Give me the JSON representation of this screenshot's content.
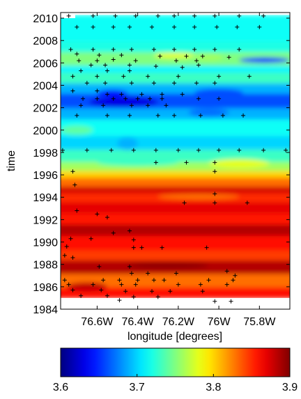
{
  "chart_data": {
    "type": "heatmap",
    "title": "",
    "xlabel": "longitude [degrees]",
    "ylabel": "time",
    "x_range": [
      -76.78,
      -75.65
    ],
    "y_range": [
      1984,
      2010.5
    ],
    "x_ticks": [
      -76.6,
      -76.4,
      -76.2,
      -76.0,
      -75.8
    ],
    "x_tick_labels": [
      "76.6W",
      "76.4W",
      "76.2W",
      "76W",
      "75.8W"
    ],
    "y_ticks": [
      1984,
      1986,
      1988,
      1990,
      1992,
      1994,
      1996,
      1998,
      2000,
      2002,
      2004,
      2006,
      2008,
      2010
    ],
    "y_tick_labels": [
      "1984",
      "1986",
      "1988",
      "1990",
      "1992",
      "1994",
      "1996",
      "1998",
      "2000",
      "2002",
      "2004",
      "2006",
      "2008",
      "2010"
    ],
    "colorbar": {
      "min": 3.6,
      "max": 3.9,
      "colormap": "jet",
      "ticks": [
        3.6,
        3.7,
        3.8,
        3.9
      ],
      "tick_labels": [
        "3.6",
        "3.7",
        "3.8",
        "3.9"
      ]
    },
    "bands": [
      {
        "y0": 1985.0,
        "y1": 1986.0,
        "value": 3.86
      },
      {
        "y0": 1986.0,
        "y1": 1987.2,
        "value": 3.83
      },
      {
        "y0": 1987.2,
        "y1": 1988.4,
        "value": 3.885
      },
      {
        "y0": 1988.4,
        "y1": 1989.3,
        "value": 3.845
      },
      {
        "y0": 1989.3,
        "y1": 1990.6,
        "value": 3.86
      },
      {
        "y0": 1990.6,
        "y1": 1991.6,
        "value": 3.885
      },
      {
        "y0": 1991.6,
        "y1": 1992.6,
        "value": 3.855
      },
      {
        "y0": 1992.6,
        "y1": 1993.6,
        "value": 3.87
      },
      {
        "y0": 1993.6,
        "y1": 1994.4,
        "value": 3.85
      },
      {
        "y0": 1994.4,
        "y1": 1995.0,
        "value": 3.875
      },
      {
        "y0": 1995.0,
        "y1": 1995.8,
        "value": 3.83
      },
      {
        "y0": 1995.8,
        "y1": 1996.4,
        "value": 3.8
      },
      {
        "y0": 1996.4,
        "y1": 1997.2,
        "value": 3.76
      },
      {
        "y0": 1997.2,
        "y1": 1998.3,
        "value": 3.73
      },
      {
        "y0": 1998.3,
        "y1": 1999.5,
        "value": 3.7
      },
      {
        "y0": 1999.5,
        "y1": 2001.0,
        "value": 3.715
      },
      {
        "y0": 2001.0,
        "y1": 2002.0,
        "value": 3.69
      },
      {
        "y0": 2002.0,
        "y1": 2003.3,
        "value": 3.66
      },
      {
        "y0": 2003.3,
        "y1": 2004.2,
        "value": 3.69
      },
      {
        "y0": 2004.2,
        "y1": 2005.2,
        "value": 3.73
      },
      {
        "y0": 2005.2,
        "y1": 2005.8,
        "value": 3.71
      },
      {
        "y0": 2005.8,
        "y1": 2007.0,
        "value": 3.75
      },
      {
        "y0": 2007.0,
        "y1": 2008.0,
        "value": 3.72
      },
      {
        "y0": 2008.0,
        "y1": 2010.3,
        "value": 3.715
      }
    ],
    "blobs": [
      {
        "x0": -76.64,
        "x1": -76.3,
        "y0": 2002.0,
        "y1": 2003.0,
        "value": 3.63
      },
      {
        "x0": -76.6,
        "x1": -76.45,
        "y0": 2003.0,
        "y1": 2003.6,
        "value": 3.64
      },
      {
        "x0": -76.12,
        "x1": -75.88,
        "y0": 2003.0,
        "y1": 2003.7,
        "value": 3.66
      },
      {
        "x0": -76.15,
        "x1": -75.95,
        "y0": 2001.2,
        "y1": 2001.9,
        "value": 3.67
      },
      {
        "x0": -75.9,
        "x1": -75.65,
        "y0": 2006.0,
        "y1": 2006.5,
        "value": 3.64
      },
      {
        "x0": -76.5,
        "x1": -76.4,
        "y0": 1998.2,
        "y1": 1999.4,
        "value": 3.69
      },
      {
        "x0": -76.12,
        "x1": -75.98,
        "y0": 2006.2,
        "y1": 2006.8,
        "value": 3.76
      },
      {
        "x0": -76.32,
        "x1": -76.12,
        "y0": 2006.4,
        "y1": 2006.9,
        "value": 3.78
      },
      {
        "x0": -76.78,
        "x1": -76.62,
        "y0": 1999.6,
        "y1": 2000.4,
        "value": 3.74
      },
      {
        "x0": -76.05,
        "x1": -75.75,
        "y0": 1996.6,
        "y1": 1997.4,
        "value": 3.78
      },
      {
        "x0": -76.6,
        "x1": -76.2,
        "y0": 1996.8,
        "y1": 1997.4,
        "value": 3.73
      },
      {
        "x0": -76.75,
        "x1": -76.55,
        "y0": 1985.6,
        "y1": 1986.4,
        "value": 3.88
      },
      {
        "x0": -76.45,
        "x1": -76.05,
        "y0": 1987.6,
        "y1": 1988.2,
        "value": 3.895
      },
      {
        "x0": -76.3,
        "x1": -75.9,
        "y0": 1993.8,
        "y1": 1994.3,
        "value": 3.83
      }
    ],
    "points": [
      [
        -76.74,
        2010.2
      ],
      [
        -76.62,
        2010.2
      ],
      [
        -76.51,
        2010.2
      ],
      [
        -76.41,
        2010.2
      ],
      [
        -76.3,
        2010.2
      ],
      [
        -76.22,
        2010.2
      ],
      [
        -76.12,
        2010.2
      ],
      [
        -76.02,
        2010.2
      ],
      [
        -75.9,
        2010.2
      ],
      [
        -75.78,
        2010.2
      ],
      [
        -76.7,
        2009.2
      ],
      [
        -76.62,
        2009.2
      ],
      [
        -76.52,
        2009.2
      ],
      [
        -76.44,
        2009.2
      ],
      [
        -76.33,
        2009.2
      ],
      [
        -76.22,
        2009.2
      ],
      [
        -76.12,
        2009.2
      ],
      [
        -76.01,
        2009.2
      ],
      [
        -75.91,
        2009.2
      ],
      [
        -75.8,
        2009.2
      ],
      [
        -76.73,
        2007.2
      ],
      [
        -76.62,
        2007.2
      ],
      [
        -76.52,
        2007.2
      ],
      [
        -76.43,
        2007.2
      ],
      [
        -76.32,
        2007.2
      ],
      [
        -76.22,
        2007.2
      ],
      [
        -76.12,
        2007.2
      ],
      [
        -76.02,
        2007.2
      ],
      [
        -75.9,
        2007.2
      ],
      [
        -76.7,
        2006.8
      ],
      [
        -76.59,
        2006.7
      ],
      [
        -76.48,
        2006.7
      ],
      [
        -76.29,
        2006.6
      ],
      [
        -76.16,
        2006.6
      ],
      [
        -76.08,
        2006.6
      ],
      [
        -75.95,
        2006.5
      ],
      [
        -76.69,
        2006.2
      ],
      [
        -76.6,
        2006.2
      ],
      [
        -76.52,
        2006.3
      ],
      [
        -76.41,
        2006.2
      ],
      [
        -76.21,
        2006.2
      ],
      [
        -76.11,
        2006.2
      ],
      [
        -76.63,
        2005.8
      ],
      [
        -76.56,
        2005.8
      ],
      [
        -76.44,
        2005.8
      ],
      [
        -76.31,
        2005.7
      ],
      [
        -76.18,
        2005.6
      ],
      [
        -76.1,
        2005.8
      ],
      [
        -76.68,
        2005.3
      ],
      [
        -76.55,
        2005.3
      ],
      [
        -76.44,
        2005.3
      ],
      [
        -76.72,
        2004.8
      ],
      [
        -76.6,
        2004.8
      ],
      [
        -76.47,
        2004.8
      ],
      [
        -76.35,
        2004.8
      ],
      [
        -76.2,
        2004.8
      ],
      [
        -76.0,
        2004.8
      ],
      [
        -75.85,
        2004.8
      ],
      [
        -76.65,
        2004.2
      ],
      [
        -76.56,
        2004.2
      ],
      [
        -76.43,
        2004.2
      ],
      [
        -76.32,
        2004.2
      ],
      [
        -76.22,
        2004.2
      ],
      [
        -76.11,
        2004.2
      ],
      [
        -76.02,
        2004.2
      ],
      [
        -76.72,
        2003.5
      ],
      [
        -76.6,
        2003.5
      ],
      [
        -76.55,
        2003.2
      ],
      [
        -76.48,
        2003.2
      ],
      [
        -76.38,
        2003.2
      ],
      [
        -76.28,
        2003.2
      ],
      [
        -76.18,
        2003.2
      ],
      [
        -76.67,
        2002.8
      ],
      [
        -76.6,
        2002.8
      ],
      [
        -76.52,
        2002.8
      ],
      [
        -76.46,
        2002.8
      ],
      [
        -76.4,
        2002.8
      ],
      [
        -76.34,
        2002.8
      ],
      [
        -76.28,
        2002.8
      ],
      [
        -76.1,
        2002.8
      ],
      [
        -76.0,
        2002.8
      ],
      [
        -76.68,
        2002.2
      ],
      [
        -76.57,
        2002.2
      ],
      [
        -76.43,
        2002.2
      ],
      [
        -76.35,
        2002.2
      ],
      [
        -76.26,
        2002.2
      ],
      [
        -76.7,
        2001.3
      ],
      [
        -76.55,
        2001.3
      ],
      [
        -76.44,
        2001.3
      ],
      [
        -76.3,
        2001.3
      ],
      [
        -76.22,
        2001.3
      ],
      [
        -76.09,
        2001.3
      ],
      [
        -75.98,
        2001.3
      ],
      [
        -75.88,
        2001.3
      ],
      [
        -76.77,
        1998.2
      ],
      [
        -76.65,
        1998.2
      ],
      [
        -76.53,
        1998.2
      ],
      [
        -76.42,
        1998.2
      ],
      [
        -76.31,
        1998.2
      ],
      [
        -76.2,
        1998.2
      ],
      [
        -76.1,
        1998.2
      ],
      [
        -76.0,
        1998.2
      ],
      [
        -75.9,
        1998.2
      ],
      [
        -75.78,
        1998.2
      ],
      [
        -75.67,
        1998.2
      ],
      [
        -76.31,
        1997.1
      ],
      [
        -76.16,
        1997.1
      ],
      [
        -76.02,
        1997.1
      ],
      [
        -76.72,
        1996.3
      ],
      [
        -76.02,
        1996.3
      ],
      [
        -76.71,
        1995.1
      ],
      [
        -76.02,
        1994.3
      ],
      [
        -76.17,
        1993.5
      ],
      [
        -76.02,
        1993.5
      ],
      [
        -75.86,
        1993.5
      ],
      [
        -76.7,
        1992.8
      ],
      [
        -76.6,
        1992.5
      ],
      [
        -76.55,
        1992.2
      ],
      [
        -76.52,
        1990.8
      ],
      [
        -76.44,
        1991.0
      ],
      [
        -76.73,
        1990.3
      ],
      [
        -76.63,
        1990.3
      ],
      [
        -76.42,
        1990.2
      ],
      [
        -76.75,
        1989.6
      ],
      [
        -76.42,
        1989.5
      ],
      [
        -76.38,
        1989.5
      ],
      [
        -76.28,
        1989.5
      ],
      [
        -76.06,
        1989.5
      ],
      [
        -76.76,
        1988.8
      ],
      [
        -76.72,
        1988.6
      ],
      [
        -76.59,
        1987.8
      ],
      [
        -76.44,
        1987.8
      ],
      [
        -76.43,
        1987.2
      ],
      [
        -76.35,
        1987.2
      ],
      [
        -76.21,
        1987.2
      ],
      [
        -75.96,
        1987.4
      ],
      [
        -75.92,
        1987.0
      ],
      [
        -76.76,
        1986.6
      ],
      [
        -76.57,
        1986.6
      ],
      [
        -76.49,
        1986.6
      ],
      [
        -76.4,
        1986.6
      ],
      [
        -76.32,
        1986.6
      ],
      [
        -76.27,
        1986.6
      ],
      [
        -76.05,
        1986.6
      ],
      [
        -75.93,
        1986.6
      ],
      [
        -76.74,
        1986.2
      ],
      [
        -76.62,
        1986.2
      ],
      [
        -76.48,
        1986.2
      ],
      [
        -76.41,
        1986.2
      ],
      [
        -76.2,
        1986.2
      ],
      [
        -76.09,
        1986.2
      ],
      [
        -75.96,
        1986.2
      ],
      [
        -76.72,
        1985.7
      ],
      [
        -76.58,
        1985.7
      ],
      [
        -76.46,
        1985.6
      ],
      [
        -76.33,
        1985.6
      ],
      [
        -76.24,
        1985.6
      ],
      [
        -76.08,
        1985.6
      ],
      [
        -76.68,
        1985.2
      ],
      [
        -76.55,
        1985.2
      ],
      [
        -76.42,
        1985.1
      ],
      [
        -76.3,
        1985.1
      ],
      [
        -76.49,
        1984.8
      ],
      [
        -76.02,
        1984.7
      ],
      [
        -75.94,
        1984.7
      ]
    ]
  }
}
